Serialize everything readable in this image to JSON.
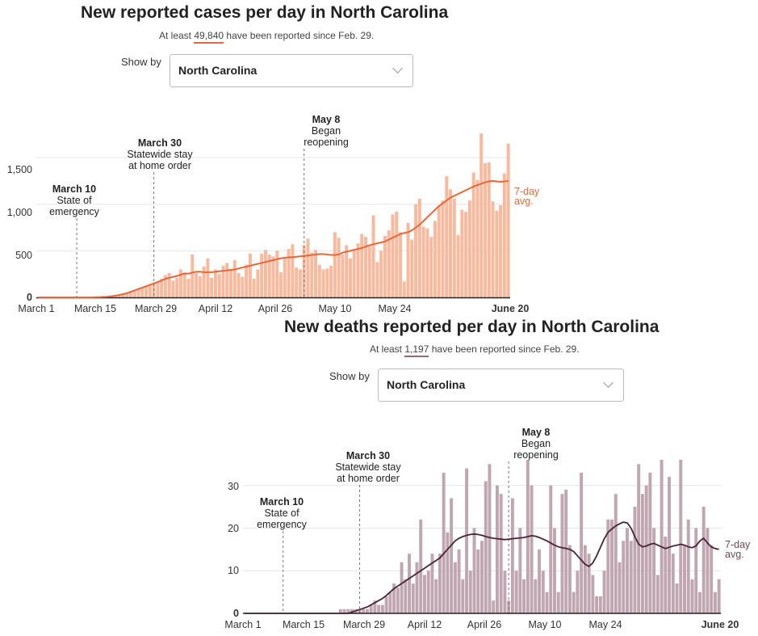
{
  "charts": [
    {
      "title": "New reported cases per day in North Carolina",
      "subtitle_prefix": "At least",
      "total": "49,840",
      "subtitle_suffix": "have been reported since Feb. 29.",
      "show_by_label": "Show by",
      "selected": "North Carolina",
      "avg_label_1": "7-day",
      "avg_label_2": "avg.",
      "x_ticks": [
        "March 1",
        "March 15",
        "March 29",
        "April 12",
        "April 26",
        "May 10",
        "May 24",
        "June 20"
      ],
      "y_ticks": [
        "0",
        "500",
        "1,000",
        "1,500"
      ],
      "annotations": [
        {
          "bold": "March 10",
          "line1": "State of",
          "line2": "emergency"
        },
        {
          "bold": "March 30",
          "line1": "Statewide stay",
          "line2": "at home order"
        },
        {
          "bold": "May 8",
          "line1": "Began",
          "line2": "reopening"
        }
      ]
    },
    {
      "title": "New deaths reported per day in North Carolina",
      "subtitle_prefix": "At least",
      "total": "1,197",
      "subtitle_suffix": "have been reported since Feb. 29.",
      "show_by_label": "Show by",
      "selected": "North Carolina",
      "avg_label_1": "7-day",
      "avg_label_2": "avg.",
      "x_ticks": [
        "March 1",
        "March 15",
        "March 29",
        "April 12",
        "April 26",
        "May 10",
        "May 24",
        "June 20"
      ],
      "y_ticks": [
        "0",
        "10",
        "20",
        "30"
      ],
      "annotations": [
        {
          "bold": "March 10",
          "line1": "State of",
          "line2": "emergency"
        },
        {
          "bold": "March 30",
          "line1": "Statewide stay",
          "line2": "at home order"
        },
        {
          "bold": "May 8",
          "line1": "Began",
          "line2": "reopening"
        }
      ]
    }
  ],
  "chart_data": [
    {
      "type": "bar",
      "title": "New reported cases per day in North Carolina",
      "x_start": "March 1",
      "x_end": "June 20",
      "ylim": [
        0,
        1700
      ],
      "y_ticks": [
        0,
        500,
        1000,
        1500
      ],
      "grid": true,
      "colors": {
        "bar": "#f8b99c",
        "line": "#e8673a",
        "underline": "#e8673a"
      },
      "event_days": {
        "March 10": 10,
        "March 30": 30,
        "May 8": 69
      },
      "values": [
        0,
        0,
        0,
        0,
        0,
        0,
        0,
        0,
        0,
        0,
        0,
        0,
        0,
        0,
        0,
        0,
        0,
        0,
        5,
        10,
        15,
        20,
        30,
        45,
        60,
        80,
        90,
        100,
        120,
        140,
        150,
        165,
        200,
        240,
        260,
        180,
        210,
        300,
        270,
        200,
        460,
        260,
        230,
        330,
        420,
        210,
        300,
        250,
        340,
        370,
        300,
        400,
        260,
        220,
        350,
        470,
        200,
        300,
        470,
        510,
        460,
        440,
        500,
        270,
        420,
        520,
        570,
        320,
        300,
        560,
        630,
        480,
        510,
        350,
        300,
        310,
        340,
        700,
        640,
        460,
        560,
        420,
        520,
        580,
        680,
        650,
        550,
        880,
        380,
        500,
        660,
        720,
        890,
        920,
        700,
        170,
        800,
        620,
        1000,
        1060,
        760,
        740,
        650,
        820,
        980,
        1040,
        1300,
        1160,
        1060,
        670,
        940,
        920,
        1040,
        1340,
        1260,
        1760,
        1440,
        1450,
        1030,
        930,
        990,
        1330,
        1650
      ],
      "avg": [
        0,
        0,
        0,
        0,
        0,
        0,
        0,
        0,
        0,
        0,
        0,
        0,
        0,
        0,
        0,
        2,
        3,
        5,
        8,
        12,
        18,
        25,
        35,
        45,
        60,
        75,
        90,
        105,
        120,
        135,
        150,
        165,
        180,
        200,
        210,
        220,
        230,
        245,
        255,
        255,
        265,
        275,
        275,
        270,
        270,
        270,
        275,
        280,
        285,
        290,
        295,
        300,
        310,
        320,
        330,
        340,
        350,
        360,
        370,
        380,
        390,
        400,
        410,
        420,
        425,
        430,
        430,
        435,
        440,
        445,
        450,
        455,
        460,
        465,
        465,
        460,
        455,
        455,
        460,
        480,
        490,
        500,
        510,
        520,
        530,
        545,
        560,
        570,
        580,
        590,
        600,
        620,
        640,
        660,
        680,
        690,
        700,
        720,
        750,
        780,
        820,
        860,
        900,
        940,
        980,
        1010,
        1040,
        1070,
        1090,
        1110,
        1130,
        1150,
        1170,
        1190,
        1205,
        1220,
        1235,
        1245,
        1250,
        1245,
        1240,
        1245,
        1250
      ]
    },
    {
      "type": "bar",
      "title": "New deaths reported per day in North Carolina",
      "x_start": "March 1",
      "x_end": "June 20",
      "ylim": [
        0,
        36
      ],
      "y_ticks": [
        0,
        10,
        20,
        30
      ],
      "grid": true,
      "colors": {
        "bar": "#c0a6b0",
        "line": "#4a2435",
        "underline": "#8a6f7a"
      },
      "event_days": {
        "March 10": 10,
        "March 30": 30,
        "May 8": 69
      },
      "values": [
        0,
        0,
        0,
        0,
        0,
        0,
        0,
        0,
        0,
        0,
        0,
        0,
        0,
        0,
        0,
        0,
        0,
        0,
        0,
        0,
        0,
        0,
        0,
        0,
        0,
        1,
        1,
        1,
        1,
        1,
        1,
        1,
        1,
        2,
        3,
        2,
        2,
        4,
        5,
        7,
        6,
        12,
        8,
        14,
        7,
        12,
        22,
        9,
        10,
        14,
        8,
        14,
        33,
        19,
        27,
        12,
        15,
        8,
        34,
        10,
        20,
        15,
        17,
        31,
        35,
        3,
        30,
        28,
        10,
        3,
        27,
        10,
        20,
        8,
        36,
        30,
        8,
        15,
        10,
        5,
        30,
        20,
        5,
        28,
        29,
        16,
        5,
        10,
        33,
        16,
        14,
        9,
        4,
        4,
        10,
        22,
        22,
        28,
        12,
        17,
        20,
        17,
        25,
        35,
        28,
        30,
        33,
        20,
        9,
        36,
        18,
        32,
        14,
        7,
        36,
        16,
        22,
        8,
        20,
        5,
        25,
        20,
        16,
        5,
        8
      ],
      "avg": [
        0,
        0,
        0,
        0,
        0,
        0,
        0,
        0,
        0,
        0,
        0,
        0,
        0,
        0,
        0,
        0,
        0,
        0,
        0,
        0,
        0,
        0,
        0,
        0,
        0,
        0,
        0,
        0,
        0.3,
        0.6,
        0.9,
        1.2,
        1.5,
        2,
        2.5,
        3,
        3.5,
        4.2,
        5,
        5.8,
        6.4,
        7,
        7.6,
        8.2,
        8.8,
        9.4,
        10,
        10.6,
        11.2,
        11.8,
        12.4,
        13,
        14,
        15,
        16,
        17,
        17.6,
        18,
        18.3,
        18.5,
        18.6,
        18.5,
        18.3,
        18,
        17.8,
        17.6,
        17.5,
        17.4,
        17.3,
        17.4,
        17.5,
        17.6,
        17.7,
        17.8,
        18,
        18.2,
        18.1,
        17.8,
        17.4,
        17,
        16.5,
        16,
        15.6,
        15.4,
        15.2,
        15,
        14.5,
        13.5,
        12.5,
        11.5,
        11,
        11.8,
        13.5,
        15.5,
        17.5,
        19,
        19.8,
        20.5,
        21,
        21.4,
        21.2,
        20,
        18,
        16.2,
        15.6,
        15.8,
        16.2,
        16.4,
        16,
        15.6,
        15.2,
        15.5,
        15.8,
        16,
        16.2,
        16,
        15.6,
        15.4,
        15.8,
        17,
        17.6,
        16.5,
        15.6,
        15.2,
        15
      ]
    }
  ]
}
